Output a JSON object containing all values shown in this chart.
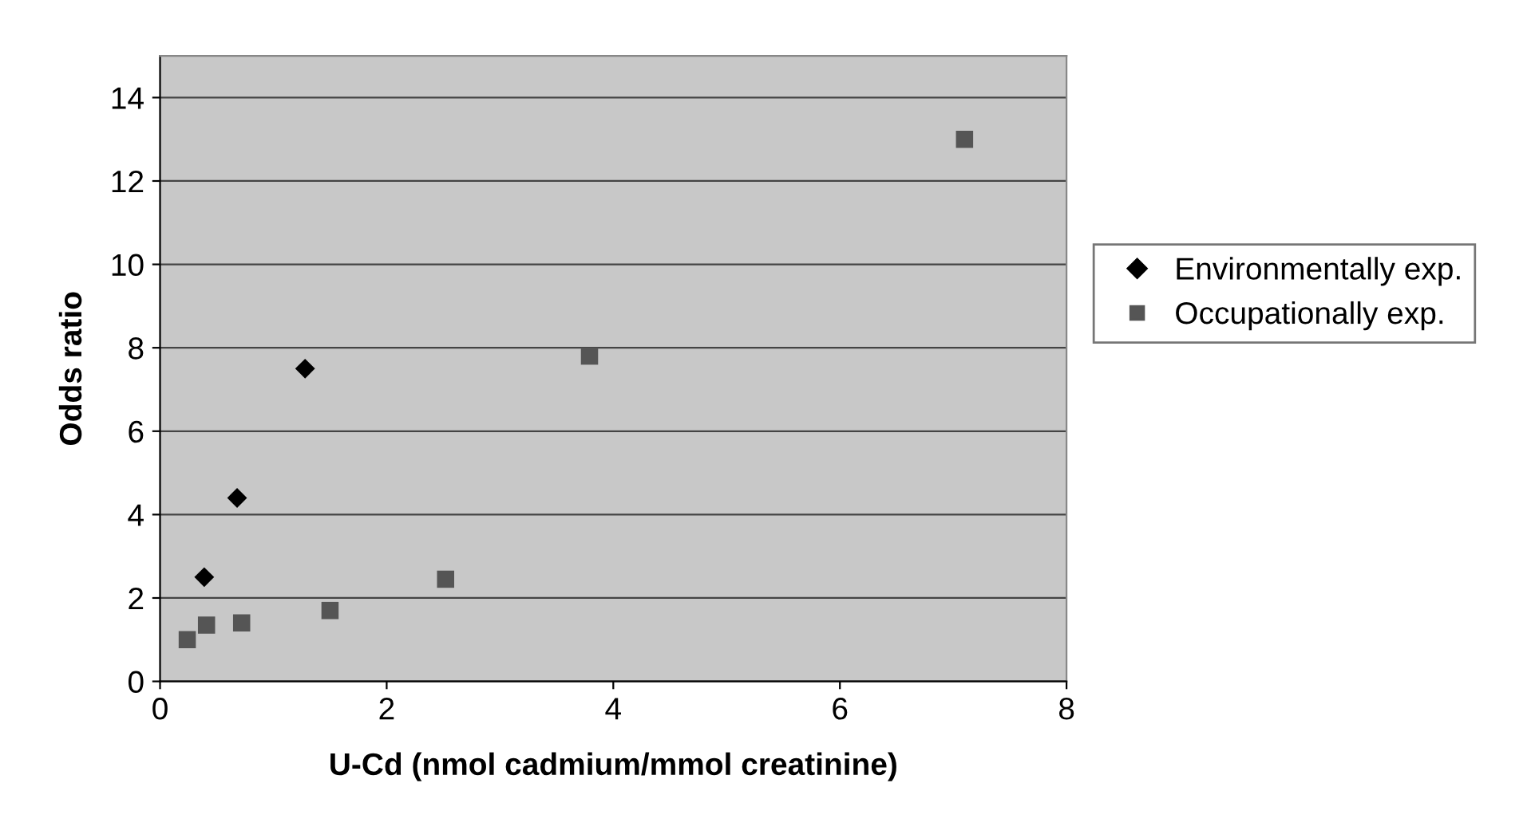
{
  "chart_data": {
    "type": "scatter",
    "xlabel": "U-Cd (nmol cadmium/mmol creatinine)",
    "ylabel": "Odds ratio",
    "xlim": [
      0,
      8
    ],
    "xticks": [
      0,
      2,
      4,
      6,
      8
    ],
    "ylim": [
      0,
      15
    ],
    "yticks": [
      0,
      2,
      4,
      6,
      8,
      10,
      12,
      14
    ],
    "grid": "y",
    "legend": "right",
    "series": [
      {
        "name": "Environmentally exp.",
        "color": "#000000",
        "marker": "diamond",
        "x": [
          0.39,
          0.68,
          1.28
        ],
        "values": [
          2.5,
          4.4,
          7.5
        ]
      },
      {
        "name": "Occupationally exp.",
        "color": "#555555",
        "marker": "square",
        "x": [
          0.24,
          0.41,
          0.72,
          1.5,
          2.52,
          3.79,
          7.1
        ],
        "values": [
          1.0,
          1.35,
          1.4,
          1.7,
          2.45,
          7.8,
          13.0
        ]
      }
    ]
  }
}
